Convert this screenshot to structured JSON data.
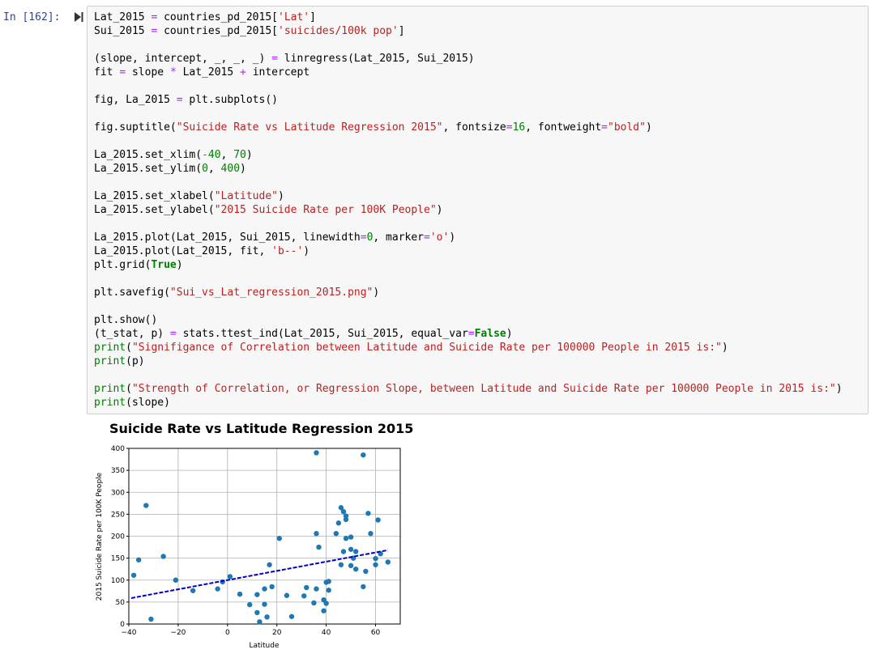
{
  "cell": {
    "prompt": "In [162]:",
    "code_lines": [
      [
        {
          "t": "Lat_2015 "
        },
        {
          "t": "=",
          "c": "o"
        },
        {
          "t": " countries_pd_2015["
        },
        {
          "t": "'Lat'",
          "c": "s"
        },
        {
          "t": "]"
        }
      ],
      [
        {
          "t": "Sui_2015 "
        },
        {
          "t": "=",
          "c": "o"
        },
        {
          "t": " countries_pd_2015["
        },
        {
          "t": "'suicides/100k pop'",
          "c": "s"
        },
        {
          "t": "]"
        }
      ],
      [],
      [
        {
          "t": "(slope, intercept, _, _, _) "
        },
        {
          "t": "=",
          "c": "o"
        },
        {
          "t": " linregress(Lat_2015, Sui_2015)"
        }
      ],
      [
        {
          "t": "fit "
        },
        {
          "t": "=",
          "c": "o"
        },
        {
          "t": " slope "
        },
        {
          "t": "*",
          "c": "o"
        },
        {
          "t": " Lat_2015 "
        },
        {
          "t": "+",
          "c": "o"
        },
        {
          "t": " intercept"
        }
      ],
      [],
      [
        {
          "t": "fig, La_2015 "
        },
        {
          "t": "=",
          "c": "o"
        },
        {
          "t": " plt.subplots()"
        }
      ],
      [],
      [
        {
          "t": "fig.suptitle("
        },
        {
          "t": "\"Suicide Rate vs Latitude Regression 2015\"",
          "c": "s"
        },
        {
          "t": ", fontsize"
        },
        {
          "t": "=",
          "c": "o"
        },
        {
          "t": "16",
          "c": "n"
        },
        {
          "t": ", fontweight"
        },
        {
          "t": "=",
          "c": "o"
        },
        {
          "t": "\"bold\"",
          "c": "s"
        },
        {
          "t": ")"
        }
      ],
      [],
      [
        {
          "t": "La_2015.set_xlim("
        },
        {
          "t": "-",
          "c": "o"
        },
        {
          "t": "40",
          "c": "n"
        },
        {
          "t": ", "
        },
        {
          "t": "70",
          "c": "n"
        },
        {
          "t": ")"
        }
      ],
      [
        {
          "t": "La_2015.set_ylim("
        },
        {
          "t": "0",
          "c": "n"
        },
        {
          "t": ", "
        },
        {
          "t": "400",
          "c": "n"
        },
        {
          "t": ")"
        }
      ],
      [],
      [
        {
          "t": "La_2015.set_xlabel("
        },
        {
          "t": "\"Latitude\"",
          "c": "s"
        },
        {
          "t": ")"
        }
      ],
      [
        {
          "t": "La_2015.set_ylabel("
        },
        {
          "t": "\"2015 Suicide Rate per 100K People\"",
          "c": "s"
        },
        {
          "t": ")"
        }
      ],
      [],
      [
        {
          "t": "La_2015.plot(Lat_2015, Sui_2015, linewidth"
        },
        {
          "t": "=",
          "c": "o"
        },
        {
          "t": "0",
          "c": "n"
        },
        {
          "t": ", marker"
        },
        {
          "t": "=",
          "c": "o"
        },
        {
          "t": "'o'",
          "c": "s"
        },
        {
          "t": ")"
        }
      ],
      [
        {
          "t": "La_2015.plot(Lat_2015, fit, "
        },
        {
          "t": "'b--'",
          "c": "s"
        },
        {
          "t": ")"
        }
      ],
      [
        {
          "t": "plt.grid("
        },
        {
          "t": "True",
          "c": "k"
        },
        {
          "t": ")"
        }
      ],
      [],
      [
        {
          "t": "plt.savefig("
        },
        {
          "t": "\"Sui_vs_Lat_regression_2015.png\"",
          "c": "s"
        },
        {
          "t": ")"
        }
      ],
      [],
      [
        {
          "t": "plt.show()"
        }
      ],
      [
        {
          "t": "(t_stat, p) "
        },
        {
          "t": "=",
          "c": "o"
        },
        {
          "t": " stats.ttest_ind(Lat_2015, Sui_2015, equal_var"
        },
        {
          "t": "=",
          "c": "o"
        },
        {
          "t": "False",
          "c": "k"
        },
        {
          "t": ")"
        }
      ],
      [
        {
          "t": "print",
          "c": "n"
        },
        {
          "t": "("
        },
        {
          "t": "\"Signifigance of Correlation between Latitude and Suicide Rate per 100000 People in 2015 is:\"",
          "c": "s"
        },
        {
          "t": ")"
        }
      ],
      [
        {
          "t": "print",
          "c": "n"
        },
        {
          "t": "(p)"
        }
      ],
      [],
      [
        {
          "t": "print",
          "c": "n"
        },
        {
          "t": "("
        },
        {
          "t": "\"Strength of Correlation, or Regression Slope, between Latitude and Suicide Rate per 100000 People in 2015 is:\"",
          "c": "s"
        },
        {
          "t": ")"
        }
      ],
      [
        {
          "t": "print",
          "c": "n"
        },
        {
          "t": "(slope)"
        }
      ]
    ]
  },
  "colors": {
    "string": "#ba2121",
    "number": "#008000",
    "operator": "#aa22ff",
    "marker": "#1f77b4",
    "fit_line": "#0000cc",
    "prompt": "#303F9F"
  },
  "chart_data": {
    "type": "scatter",
    "title": "Suicide Rate vs Latitude Regression 2015",
    "xlabel": "Latitude",
    "ylabel": "2015 Suicide Rate per 100K People",
    "xlim": [
      -40,
      70
    ],
    "ylim": [
      0,
      400
    ],
    "xticks": [
      -40,
      -20,
      0,
      20,
      40,
      60
    ],
    "yticks": [
      0,
      50,
      100,
      150,
      200,
      250,
      300,
      350,
      400
    ],
    "grid": true,
    "points": [
      [
        -38,
        111
      ],
      [
        -36,
        146
      ],
      [
        -33,
        270
      ],
      [
        -31,
        11
      ],
      [
        -26,
        154
      ],
      [
        -21,
        100
      ],
      [
        -14,
        76
      ],
      [
        -4,
        80
      ],
      [
        -2,
        96
      ],
      [
        1,
        108
      ],
      [
        5,
        68
      ],
      [
        9,
        44
      ],
      [
        12,
        67
      ],
      [
        12,
        26
      ],
      [
        13,
        5
      ],
      [
        15,
        80
      ],
      [
        15,
        45
      ],
      [
        16,
        16
      ],
      [
        17,
        135
      ],
      [
        18,
        85
      ],
      [
        21,
        195
      ],
      [
        24,
        65
      ],
      [
        26,
        17
      ],
      [
        31,
        64
      ],
      [
        32,
        83
      ],
      [
        35,
        48
      ],
      [
        36,
        390
      ],
      [
        36,
        80
      ],
      [
        36,
        206
      ],
      [
        37,
        175
      ],
      [
        39,
        55
      ],
      [
        39,
        30
      ],
      [
        40,
        47
      ],
      [
        40,
        95
      ],
      [
        41,
        97
      ],
      [
        41,
        77
      ],
      [
        44,
        206
      ],
      [
        45,
        230
      ],
      [
        46,
        135
      ],
      [
        46,
        265
      ],
      [
        47,
        165
      ],
      [
        47,
        256
      ],
      [
        48,
        195
      ],
      [
        48,
        238
      ],
      [
        48,
        246
      ],
      [
        50,
        198
      ],
      [
        50,
        170
      ],
      [
        50,
        133
      ],
      [
        51,
        150
      ],
      [
        52,
        165
      ],
      [
        52,
        125
      ],
      [
        55,
        385
      ],
      [
        55,
        85
      ],
      [
        56,
        120
      ],
      [
        57,
        252
      ],
      [
        58,
        206
      ],
      [
        60,
        149
      ],
      [
        60,
        135
      ],
      [
        61,
        237
      ],
      [
        62,
        160
      ],
      [
        65,
        141
      ]
    ],
    "fit_line": {
      "slope": 1.05,
      "intercept": 100,
      "x_range": [
        -39,
        65
      ]
    }
  }
}
